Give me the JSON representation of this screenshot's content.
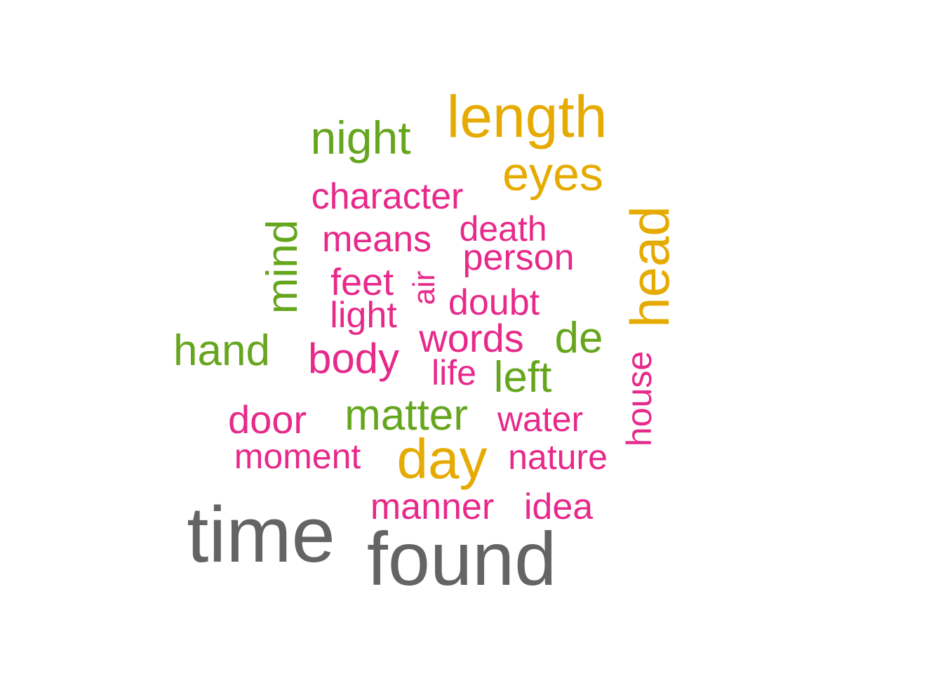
{
  "palette": {
    "gray": "#636466",
    "gold": "#e6ab02",
    "green": "#66a61e",
    "magenta": "#e7298a"
  },
  "words": [
    {
      "text": "time",
      "color": "gray"
    },
    {
      "text": "found",
      "color": "gray"
    },
    {
      "text": "length",
      "color": "gold"
    },
    {
      "text": "eyes",
      "color": "gold"
    },
    {
      "text": "head",
      "color": "gold"
    },
    {
      "text": "day",
      "color": "gold"
    },
    {
      "text": "night",
      "color": "green"
    },
    {
      "text": "mind",
      "color": "green"
    },
    {
      "text": "hand",
      "color": "green"
    },
    {
      "text": "matter",
      "color": "green"
    },
    {
      "text": "left",
      "color": "green"
    },
    {
      "text": "de",
      "color": "green"
    },
    {
      "text": "character",
      "color": "magenta"
    },
    {
      "text": "means",
      "color": "magenta"
    },
    {
      "text": "death",
      "color": "magenta"
    },
    {
      "text": "person",
      "color": "magenta"
    },
    {
      "text": "feet",
      "color": "magenta"
    },
    {
      "text": "air",
      "color": "magenta"
    },
    {
      "text": "doubt",
      "color": "magenta"
    },
    {
      "text": "light",
      "color": "magenta"
    },
    {
      "text": "words",
      "color": "magenta"
    },
    {
      "text": "body",
      "color": "magenta"
    },
    {
      "text": "life",
      "color": "magenta"
    },
    {
      "text": "house",
      "color": "magenta"
    },
    {
      "text": "door",
      "color": "magenta"
    },
    {
      "text": "water",
      "color": "magenta"
    },
    {
      "text": "moment",
      "color": "magenta"
    },
    {
      "text": "nature",
      "color": "magenta"
    },
    {
      "text": "manner",
      "color": "magenta"
    },
    {
      "text": "idea",
      "color": "magenta"
    }
  ]
}
